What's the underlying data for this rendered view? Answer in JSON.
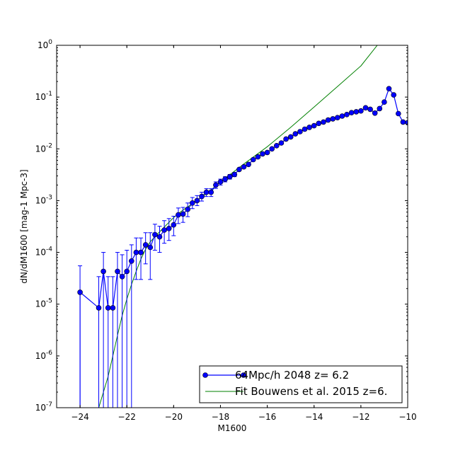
{
  "colors": {
    "sim": "#0000ff",
    "fit": "#008000",
    "axis": "#000000"
  },
  "chart_data": {
    "type": "line",
    "xlabel": "M1600",
    "ylabel": "dN/dM1600 [mag-1 Mpc-3]",
    "xlim": [
      -25,
      -10
    ],
    "ylim_log10": [
      -7,
      0
    ],
    "yscale": "log",
    "grid": false,
    "legend_position": "lower-right",
    "x_ticks": [
      -24,
      -22,
      -20,
      -18,
      -16,
      -14,
      -12,
      -10
    ],
    "x_tick_labels": [
      "−24",
      "−22",
      "−20",
      "−18",
      "−16",
      "−14",
      "−12",
      "−10"
    ],
    "y_ticks": [
      {
        "value": 1e-07,
        "base": "10",
        "exp": "-7"
      },
      {
        "value": 1e-06,
        "base": "10",
        "exp": "-6"
      },
      {
        "value": 1e-05,
        "base": "10",
        "exp": "-5"
      },
      {
        "value": 0.0001,
        "base": "10",
        "exp": "-4"
      },
      {
        "value": 0.001,
        "base": "10",
        "exp": "-3"
      },
      {
        "value": 0.01,
        "base": "10",
        "exp": "-2"
      },
      {
        "value": 0.1,
        "base": "10",
        "exp": "-1"
      },
      {
        "value": 1,
        "base": "10",
        "exp": "0"
      }
    ],
    "series": [
      {
        "name": "64Mpc/h 2048 z= 6.2",
        "style": "line-with-markers",
        "points": [
          {
            "x": -24.0,
            "y": 1.7e-05,
            "lo": 1e-07,
            "hi": 5.5e-05
          },
          {
            "x": -23.2,
            "y": 8.5e-06,
            "lo": 1e-07,
            "hi": 3.4e-05
          },
          {
            "x": -23.0,
            "y": 4.3e-05,
            "lo": 1e-07,
            "hi": 0.0001
          },
          {
            "x": -22.8,
            "y": 8.5e-06,
            "lo": 1e-07,
            "hi": 3.4e-05
          },
          {
            "x": -22.6,
            "y": 8.5e-06,
            "lo": 1e-07,
            "hi": 3.4e-05
          },
          {
            "x": -22.4,
            "y": 4.3e-05,
            "lo": 1e-07,
            "hi": 0.0001
          },
          {
            "x": -22.2,
            "y": 3.4e-05,
            "lo": 1e-07,
            "hi": 9e-05
          },
          {
            "x": -22.0,
            "y": 4.3e-05,
            "lo": 1e-07,
            "hi": 0.00011
          },
          {
            "x": -21.8,
            "y": 6.8e-05,
            "lo": 1e-07,
            "hi": 0.00014
          },
          {
            "x": -21.6,
            "y": 0.0001,
            "lo": 3e-05,
            "hi": 0.00019
          },
          {
            "x": -21.4,
            "y": 0.0001,
            "lo": 3e-05,
            "hi": 0.00019
          },
          {
            "x": -21.2,
            "y": 0.00014,
            "lo": 6e-05,
            "hi": 0.00024
          },
          {
            "x": -21.0,
            "y": 0.000125,
            "lo": 3e-05,
            "hi": 0.00024
          },
          {
            "x": -20.8,
            "y": 0.00022,
            "lo": 0.00011,
            "hi": 0.00035
          },
          {
            "x": -20.6,
            "y": 0.0002,
            "lo": 0.0001,
            "hi": 0.00032
          },
          {
            "x": -20.4,
            "y": 0.00027,
            "lo": 0.00015,
            "hi": 0.00041
          },
          {
            "x": -20.2,
            "y": 0.00029,
            "lo": 0.00017,
            "hi": 0.00045
          },
          {
            "x": -20.0,
            "y": 0.00034,
            "lo": 0.00021,
            "hi": 0.0005
          },
          {
            "x": -19.8,
            "y": 0.00053,
            "lo": 0.00036,
            "hi": 0.00072
          },
          {
            "x": -19.6,
            "y": 0.00055,
            "lo": 0.00038,
            "hi": 0.00074
          },
          {
            "x": -19.4,
            "y": 0.00068,
            "lo": 0.00049,
            "hi": 0.0009
          },
          {
            "x": -19.2,
            "y": 0.0009,
            "lo": 0.0007,
            "hi": 0.00115
          },
          {
            "x": -19.0,
            "y": 0.001,
            "lo": 0.0008,
            "hi": 0.00125
          },
          {
            "x": -18.8,
            "y": 0.0012,
            "lo": 0.00098,
            "hi": 0.00145
          },
          {
            "x": -18.6,
            "y": 0.00145,
            "lo": 0.0012,
            "hi": 0.0017
          },
          {
            "x": -18.4,
            "y": 0.00145,
            "lo": 0.0012,
            "hi": 0.0017
          },
          {
            "x": -18.2,
            "y": 0.002,
            "lo": 0.00172,
            "hi": 0.0023
          },
          {
            "x": -18.0,
            "y": 0.0023,
            "lo": 0.002,
            "hi": 0.0026
          },
          {
            "x": -17.8,
            "y": 0.0026,
            "lo": 0.0023,
            "hi": 0.0029
          },
          {
            "x": -17.6,
            "y": 0.0029,
            "lo": 0.0026,
            "hi": 0.0032
          },
          {
            "x": -17.4,
            "y": 0.0032,
            "lo": 0.0029,
            "hi": 0.0035
          },
          {
            "x": -17.2,
            "y": 0.004
          },
          {
            "x": -17.0,
            "y": 0.0045
          },
          {
            "x": -16.8,
            "y": 0.005
          },
          {
            "x": -16.6,
            "y": 0.0062
          },
          {
            "x": -16.4,
            "y": 0.007
          },
          {
            "x": -16.2,
            "y": 0.008
          },
          {
            "x": -16.0,
            "y": 0.0085
          },
          {
            "x": -15.8,
            "y": 0.01
          },
          {
            "x": -15.6,
            "y": 0.0115
          },
          {
            "x": -15.4,
            "y": 0.013
          },
          {
            "x": -15.2,
            "y": 0.0155
          },
          {
            "x": -15.0,
            "y": 0.017
          },
          {
            "x": -14.8,
            "y": 0.0195
          },
          {
            "x": -14.6,
            "y": 0.0215
          },
          {
            "x": -14.4,
            "y": 0.024
          },
          {
            "x": -14.2,
            "y": 0.026
          },
          {
            "x": -14.0,
            "y": 0.028
          },
          {
            "x": -13.8,
            "y": 0.031
          },
          {
            "x": -13.6,
            "y": 0.033
          },
          {
            "x": -13.4,
            "y": 0.036
          },
          {
            "x": -13.2,
            "y": 0.038
          },
          {
            "x": -13.0,
            "y": 0.04
          },
          {
            "x": -12.8,
            "y": 0.043
          },
          {
            "x": -12.6,
            "y": 0.046
          },
          {
            "x": -12.4,
            "y": 0.05
          },
          {
            "x": -12.2,
            "y": 0.052
          },
          {
            "x": -12.0,
            "y": 0.054
          },
          {
            "x": -11.8,
            "y": 0.062
          },
          {
            "x": -11.6,
            "y": 0.058
          },
          {
            "x": -11.4,
            "y": 0.049
          },
          {
            "x": -11.2,
            "y": 0.06
          },
          {
            "x": -11.0,
            "y": 0.08
          },
          {
            "x": -10.8,
            "y": 0.145
          },
          {
            "x": -10.6,
            "y": 0.11
          },
          {
            "x": -10.4,
            "y": 0.048
          },
          {
            "x": -10.2,
            "y": 0.033
          },
          {
            "x": -10.0,
            "y": 0.032
          }
        ]
      },
      {
        "name": "Fit Bouwens et al. 2015 z=6.",
        "style": "line",
        "points": [
          {
            "x": -23.2,
            "y": 1e-07
          },
          {
            "x": -23.0,
            "y": 2e-07
          },
          {
            "x": -22.8,
            "y": 4e-07
          },
          {
            "x": -22.6,
            "y": 1e-06
          },
          {
            "x": -22.4,
            "y": 2.5e-06
          },
          {
            "x": -22.2,
            "y": 6e-06
          },
          {
            "x": -22.0,
            "y": 1.25e-05
          },
          {
            "x": -21.8,
            "y": 2.4e-05
          },
          {
            "x": -21.6,
            "y": 4.3e-05
          },
          {
            "x": -21.4,
            "y": 7.4e-05
          },
          {
            "x": -21.2,
            "y": 0.000115
          },
          {
            "x": -21.0,
            "y": 0.00016
          },
          {
            "x": -20.6,
            "y": 0.00025
          },
          {
            "x": -20.0,
            "y": 0.00047
          },
          {
            "x": -19.6,
            "y": 0.00066
          },
          {
            "x": -19.0,
            "y": 0.001
          },
          {
            "x": -18.6,
            "y": 0.00135
          },
          {
            "x": -18.0,
            "y": 0.0023
          },
          {
            "x": -17.0,
            "y": 0.0051
          },
          {
            "x": -16.0,
            "y": 0.011
          },
          {
            "x": -15.0,
            "y": 0.026
          },
          {
            "x": -14.0,
            "y": 0.064
          },
          {
            "x": -13.0,
            "y": 0.16
          },
          {
            "x": -12.0,
            "y": 0.4
          },
          {
            "x": -11.3,
            "y": 1.0
          }
        ]
      }
    ]
  }
}
